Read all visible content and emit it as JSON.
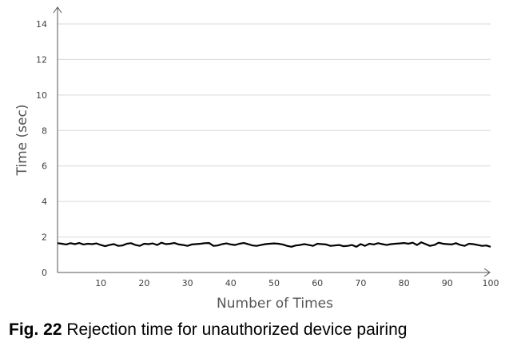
{
  "chart_data": {
    "type": "line",
    "xlabel": "Number of Times",
    "ylabel": "Time (sec)",
    "xlim": [
      0,
      100
    ],
    "ylim": [
      0,
      14
    ],
    "xticks": [
      10,
      20,
      30,
      40,
      50,
      60,
      70,
      80,
      90,
      100
    ],
    "yticks": [
      0,
      2,
      4,
      6,
      8,
      10,
      12,
      14
    ],
    "grid": "horizontal",
    "series": [
      {
        "color": "#000000",
        "x": [
          0,
          1,
          2,
          3,
          4,
          5,
          6,
          7,
          8,
          9,
          10,
          11,
          12,
          13,
          14,
          15,
          16,
          17,
          18,
          19,
          20,
          21,
          22,
          23,
          24,
          25,
          26,
          27,
          28,
          29,
          30,
          31,
          32,
          33,
          34,
          35,
          36,
          37,
          38,
          39,
          40,
          41,
          42,
          43,
          44,
          45,
          46,
          47,
          48,
          49,
          50,
          51,
          52,
          53,
          54,
          55,
          56,
          57,
          58,
          59,
          60,
          61,
          62,
          63,
          64,
          65,
          66,
          67,
          68,
          69,
          70,
          71,
          72,
          73,
          74,
          75,
          76,
          77,
          78,
          79,
          80,
          81,
          82,
          83,
          84,
          85,
          86,
          87,
          88,
          89,
          90,
          91,
          92,
          93,
          94,
          95,
          96,
          97,
          98,
          99,
          100
        ],
        "y": [
          1.65,
          1.62,
          1.58,
          1.65,
          1.6,
          1.66,
          1.58,
          1.62,
          1.6,
          1.64,
          1.55,
          1.48,
          1.55,
          1.6,
          1.5,
          1.52,
          1.62,
          1.65,
          1.55,
          1.5,
          1.62,
          1.6,
          1.64,
          1.55,
          1.68,
          1.6,
          1.62,
          1.66,
          1.58,
          1.55,
          1.5,
          1.58,
          1.6,
          1.62,
          1.65,
          1.66,
          1.5,
          1.52,
          1.6,
          1.64,
          1.58,
          1.55,
          1.62,
          1.66,
          1.6,
          1.52,
          1.5,
          1.55,
          1.6,
          1.62,
          1.64,
          1.62,
          1.58,
          1.5,
          1.45,
          1.52,
          1.55,
          1.6,
          1.55,
          1.5,
          1.62,
          1.6,
          1.58,
          1.5,
          1.52,
          1.55,
          1.48,
          1.5,
          1.55,
          1.45,
          1.6,
          1.5,
          1.62,
          1.58,
          1.65,
          1.6,
          1.55,
          1.6,
          1.62,
          1.64,
          1.66,
          1.62,
          1.68,
          1.55,
          1.7,
          1.6,
          1.5,
          1.55,
          1.68,
          1.62,
          1.6,
          1.58,
          1.65,
          1.55,
          1.5,
          1.62,
          1.6,
          1.55,
          1.5,
          1.52,
          1.45
        ]
      }
    ]
  },
  "caption": {
    "label": "Fig. 22",
    "text": "Rejection time for unauthorized device pairing"
  }
}
